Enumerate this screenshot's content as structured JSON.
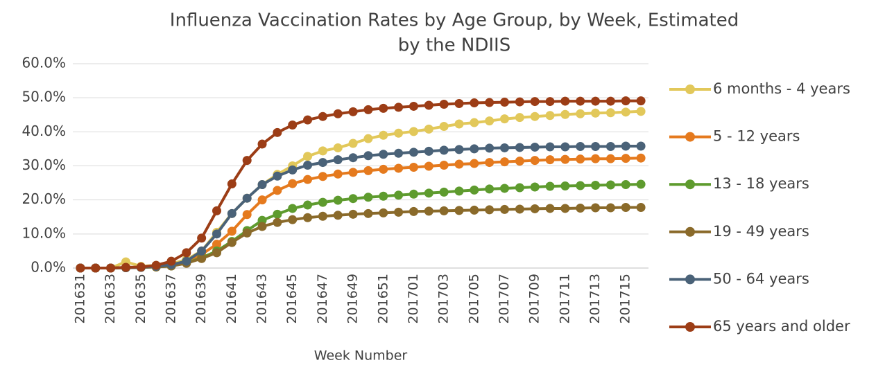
{
  "chart_data": {
    "type": "line",
    "title": "Influenza Vaccination Rates by Age Group, by Week, Estimated by the NDIIS",
    "x_label": "Week Number",
    "categories": [
      "201631",
      null,
      "201633",
      null,
      "201635",
      null,
      "201637",
      null,
      "201639",
      null,
      "201641",
      null,
      "201643",
      null,
      "201645",
      null,
      "201647",
      null,
      "201649",
      null,
      "201651",
      null,
      "201701",
      null,
      "201703",
      null,
      "201705",
      null,
      "201707",
      null,
      "201709",
      null,
      "201711",
      null,
      "201713",
      null,
      "201715",
      null
    ],
    "series": [
      {
        "name": "6 months - 4 years",
        "color": "#e2c85a",
        "values": [
          0,
          0,
          0,
          1.8,
          0.5,
          0.8,
          1.2,
          2.5,
          5,
          10.5,
          16,
          20.5,
          24.5,
          27.5,
          30,
          32.8,
          34.4,
          35.3,
          36.6,
          38,
          39,
          39.6,
          40.1,
          40.8,
          41.6,
          42.3,
          42.7,
          43.2,
          43.8,
          44.2,
          44.5,
          44.8,
          45.1,
          45.3,
          45.5,
          45.6,
          45.8,
          46
        ]
      },
      {
        "name": "5 - 12 years",
        "color": "#e57a1e",
        "values": [
          0,
          0,
          0,
          0.1,
          0.2,
          0.4,
          0.8,
          1.8,
          4,
          7,
          10.8,
          15.7,
          20,
          22.8,
          24.8,
          26,
          26.9,
          27.6,
          28.1,
          28.6,
          29,
          29.3,
          29.6,
          29.9,
          30.2,
          30.5,
          30.7,
          31,
          31.2,
          31.4,
          31.6,
          31.8,
          31.9,
          32,
          32.1,
          32.1,
          32.2,
          32.3
        ]
      },
      {
        "name": "13 - 18 years",
        "color": "#5e9b2e",
        "values": [
          0,
          0,
          0,
          0.1,
          0.2,
          0.3,
          0.6,
          1.5,
          3,
          5,
          7.8,
          11,
          14,
          15.8,
          17.5,
          18.5,
          19.3,
          19.9,
          20.4,
          20.8,
          21.1,
          21.4,
          21.7,
          22,
          22.3,
          22.6,
          22.9,
          23.2,
          23.4,
          23.6,
          23.8,
          24,
          24.1,
          24.2,
          24.3,
          24.4,
          24.5,
          24.6
        ]
      },
      {
        "name": "19 - 49 years",
        "color": "#8a6a2a",
        "values": [
          0,
          0,
          0,
          0.1,
          0.2,
          0.3,
          0.6,
          1.4,
          2.8,
          4.5,
          7.5,
          10.3,
          12.2,
          13.4,
          14.2,
          14.8,
          15.2,
          15.5,
          15.8,
          16,
          16.2,
          16.4,
          16.6,
          16.7,
          16.8,
          16.9,
          17,
          17.1,
          17.2,
          17.3,
          17.4,
          17.5,
          17.5,
          17.6,
          17.7,
          17.7,
          17.8,
          17.8
        ]
      },
      {
        "name": "50 - 64 years",
        "color": "#4a6278",
        "values": [
          0,
          0,
          0,
          0.1,
          0.2,
          0.5,
          1,
          2,
          5,
          10,
          16,
          20.5,
          24.5,
          27,
          28.8,
          30.2,
          31,
          31.8,
          32.4,
          33,
          33.4,
          33.7,
          34,
          34.3,
          34.6,
          34.8,
          35,
          35.2,
          35.3,
          35.4,
          35.5,
          35.6,
          35.6,
          35.7,
          35.7,
          35.7,
          35.8,
          35.8
        ]
      },
      {
        "name": "65 years and older",
        "color": "#9c3d16",
        "values": [
          0,
          0,
          0,
          0.2,
          0.3,
          0.8,
          2,
          4.5,
          8.8,
          16.8,
          24.7,
          31.6,
          36.4,
          39.8,
          42,
          43.5,
          44.5,
          45.3,
          45.9,
          46.5,
          46.9,
          47.2,
          47.5,
          47.8,
          48.1,
          48.3,
          48.5,
          48.6,
          48.7,
          48.8,
          48.9,
          48.9,
          49,
          49,
          49,
          49,
          49.1,
          49.1
        ]
      }
    ],
    "ylim": [
      0,
      60
    ],
    "yticks": [
      {
        "value": 0,
        "label": "0.0%"
      },
      {
        "value": 10,
        "label": "10.0%"
      },
      {
        "value": 20,
        "label": "20.0%"
      },
      {
        "value": 30,
        "label": "30.0%"
      },
      {
        "value": 40,
        "label": "40.0%"
      },
      {
        "value": 50,
        "label": "50.0%"
      },
      {
        "value": 60,
        "label": "60.0%"
      }
    ],
    "grid": true,
    "legend": "right"
  }
}
